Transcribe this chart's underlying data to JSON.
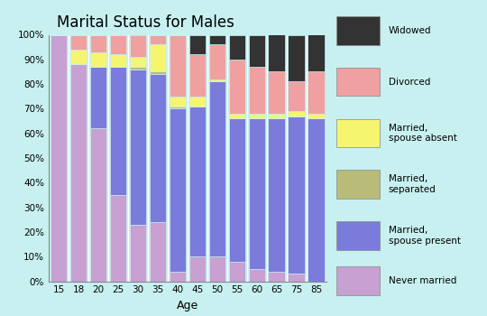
{
  "title": "Marital Status for Males",
  "xlabel": "Age",
  "age_labels": [
    "15",
    "18",
    "20",
    "25",
    "30",
    "35",
    "40",
    "45",
    "50",
    "55",
    "60",
    "65",
    "75",
    "85"
  ],
  "categories": [
    "Never married",
    "Married, spouse present",
    "Married, separated",
    "Married, spouse absent",
    "Divorced",
    "Widowed"
  ],
  "colors": [
    "#c8a0d2",
    "#7b7bdb",
    "#b8bc78",
    "#f5f570",
    "#f0a0a0",
    "#333333"
  ],
  "data": {
    "Never married": [
      100,
      88,
      62,
      35,
      23,
      24,
      4,
      10,
      10,
      8,
      5,
      4,
      3,
      0
    ],
    "Married, spouse present": [
      0,
      0,
      25,
      52,
      63,
      60,
      66,
      61,
      71,
      58,
      61,
      62,
      64,
      66
    ],
    "Married, separated": [
      0,
      0,
      0,
      0,
      1,
      1,
      1,
      0,
      0,
      0,
      0,
      0,
      0,
      0
    ],
    "Married, spouse absent": [
      0,
      6,
      6,
      5,
      4,
      11,
      4,
      4,
      1,
      2,
      2,
      2,
      2,
      2
    ],
    "Divorced": [
      0,
      6,
      7,
      8,
      9,
      4,
      25,
      17,
      14,
      22,
      19,
      17,
      12,
      17
    ],
    "Widowed": [
      0,
      0,
      0,
      0,
      0,
      0,
      0,
      8,
      4,
      10,
      13,
      15,
      19,
      15
    ]
  },
  "background_color": "#c8f0f0",
  "bar_edge_color": "#c8f0f0",
  "ylim": [
    0,
    100
  ],
  "ytick_labels": [
    "0%",
    "10%",
    "20%",
    "30%",
    "40%",
    "50%",
    "60%",
    "70%",
    "80%",
    "90%",
    "100%"
  ],
  "legend_labels": [
    "Widowed",
    "Divorced",
    "Married,\nspouse absent",
    "Married,\nseparated",
    "Married,\nspouse present",
    "Never married"
  ],
  "legend_colors": [
    "#333333",
    "#f0a0a0",
    "#f5f570",
    "#b8bc78",
    "#7b7bdb",
    "#c8a0d2"
  ],
  "figsize": [
    5.4,
    3.5
  ],
  "dpi": 100
}
